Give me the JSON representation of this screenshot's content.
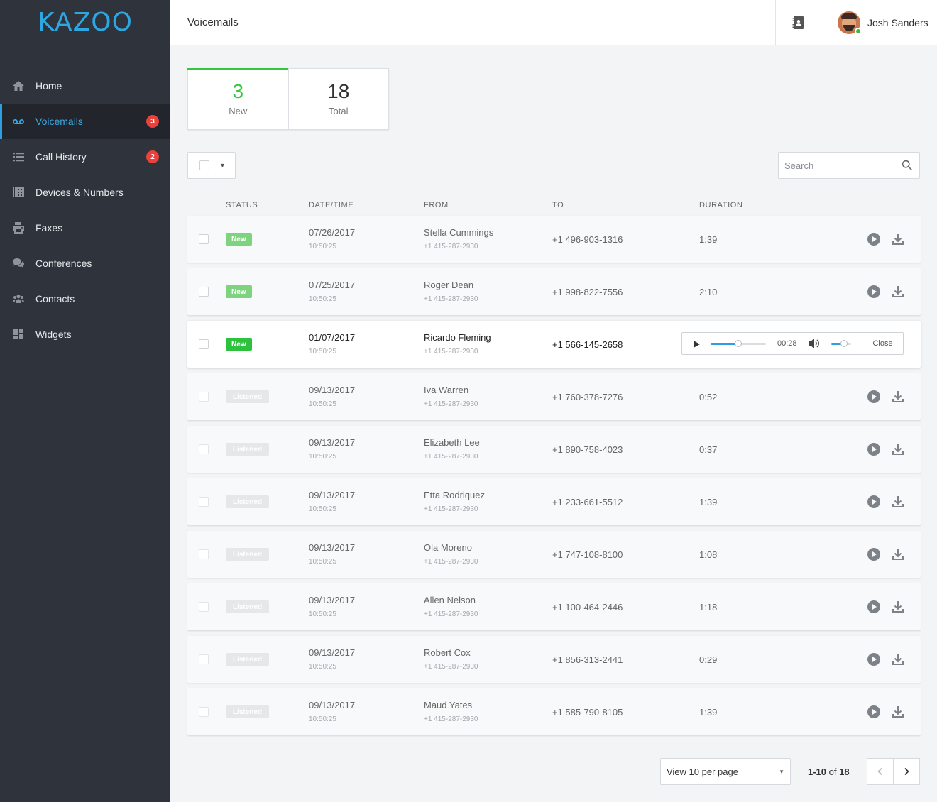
{
  "app": {
    "logo": "KAZOO",
    "page_title": "Voicemails"
  },
  "colors": {
    "accent": "#2d9ee0",
    "new": "#2ec13d",
    "badge": "#e9413b",
    "sidebar": "#2f333b"
  },
  "sidebar": {
    "items": [
      {
        "label": "Home",
        "icon": "home-icon",
        "badge": ""
      },
      {
        "label": "Voicemails",
        "icon": "voicemail-icon",
        "badge": "3",
        "active": true
      },
      {
        "label": "Call History",
        "icon": "list-icon",
        "badge": "2"
      },
      {
        "label": "Devices & Numbers",
        "icon": "devices-icon",
        "badge": ""
      },
      {
        "label": "Faxes",
        "icon": "fax-icon",
        "badge": ""
      },
      {
        "label": "Conferences",
        "icon": "conference-icon",
        "badge": ""
      },
      {
        "label": "Contacts",
        "icon": "contacts-icon",
        "badge": ""
      },
      {
        "label": "Widgets",
        "icon": "widgets-icon",
        "badge": ""
      }
    ]
  },
  "header": {
    "user_name": "Josh Sanders",
    "contacts_icon": "address-book-icon",
    "avatar_status": "online"
  },
  "stats": [
    {
      "value": "3",
      "label": "New"
    },
    {
      "value": "18",
      "label": "Total"
    }
  ],
  "search": {
    "placeholder": "Search",
    "value": ""
  },
  "columns": [
    "STATUS",
    "DATE/TIME",
    "FROM",
    "TO",
    "DURATION"
  ],
  "rows": [
    {
      "status": "New",
      "date": "07/26/2017",
      "time": "10:50:25",
      "from_name": "Stella Cummings",
      "from_number": "+1 415-287-2930",
      "to": "+1 496-903-1316",
      "duration": "1:39"
    },
    {
      "status": "New",
      "date": "07/25/2017",
      "time": "10:50:25",
      "from_name": "Roger Dean",
      "from_number": "+1 415-287-2930",
      "to": "+1 998-822-7556",
      "duration": "2:10"
    },
    {
      "status": "New",
      "date": "01/07/2017",
      "time": "10:50:25",
      "from_name": "Ricardo Fleming",
      "from_number": "+1 415-287-2930",
      "to": "+1 566-145-2658",
      "duration": "",
      "playing": true
    },
    {
      "status": "Listened",
      "date": "09/13/2017",
      "time": "10:50:25",
      "from_name": "Iva Warren",
      "from_number": "+1 415-287-2930",
      "to": "+1 760-378-7276",
      "duration": "0:52"
    },
    {
      "status": "Listened",
      "date": "09/13/2017",
      "time": "10:50:25",
      "from_name": "Elizabeth Lee",
      "from_number": "+1 415-287-2930",
      "to": "+1 890-758-4023",
      "duration": "0:37"
    },
    {
      "status": "Listened",
      "date": "09/13/2017",
      "time": "10:50:25",
      "from_name": "Etta Rodriquez",
      "from_number": "+1 415-287-2930",
      "to": "+1 233-661-5512",
      "duration": "1:39"
    },
    {
      "status": "Listened",
      "date": "09/13/2017",
      "time": "10:50:25",
      "from_name": "Ola Moreno",
      "from_number": "+1 415-287-2930",
      "to": "+1 747-108-8100",
      "duration": "1:08"
    },
    {
      "status": "Listened",
      "date": "09/13/2017",
      "time": "10:50:25",
      "from_name": "Allen Nelson",
      "from_number": "+1 415-287-2930",
      "to": "+1 100-464-2446",
      "duration": "1:18"
    },
    {
      "status": "Listened",
      "date": "09/13/2017",
      "time": "10:50:25",
      "from_name": "Robert Cox",
      "from_number": "+1 415-287-2930",
      "to": "+1 856-313-2441",
      "duration": "0:29"
    },
    {
      "status": "Listened",
      "date": "09/13/2017",
      "time": "10:50:25",
      "from_name": "Maud Yates",
      "from_number": "+1 415-287-2930",
      "to": "+1 585-790-8105",
      "duration": "1:39"
    }
  ],
  "player": {
    "time": "00:28",
    "progress": 0.5,
    "volume": 0.65,
    "close_label": "Close"
  },
  "pagination": {
    "per_page_label": "View 10 per page",
    "range": "1-10",
    "of_label": "of",
    "total": "18"
  }
}
